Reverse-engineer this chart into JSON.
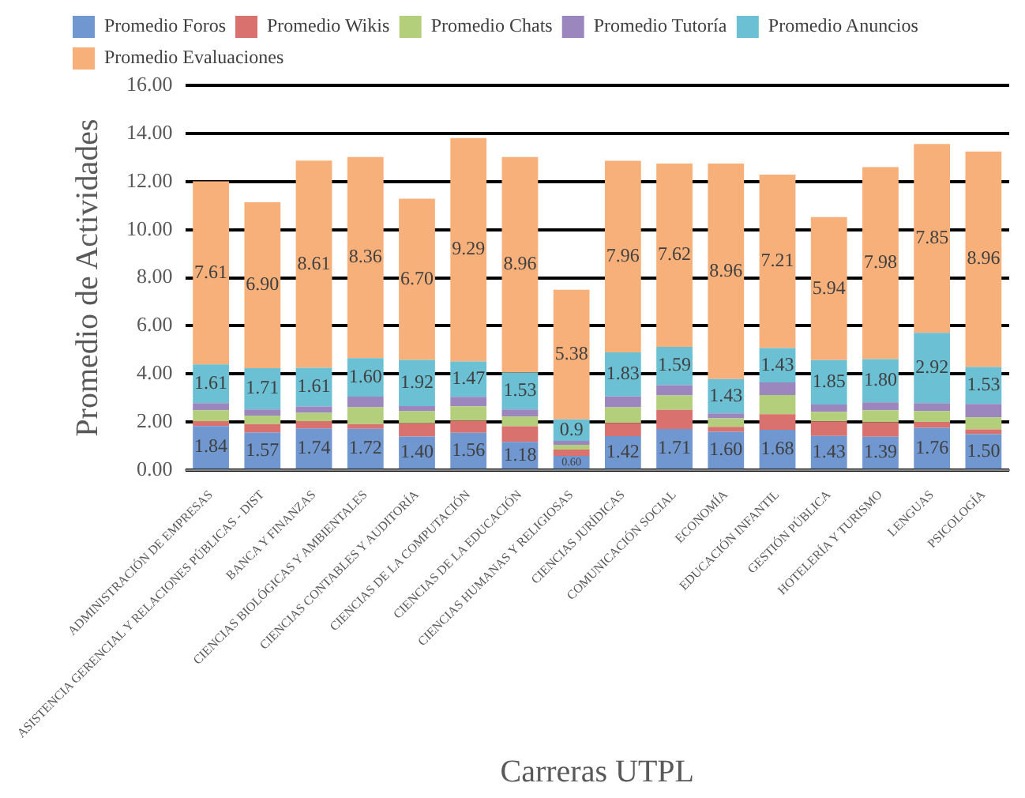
{
  "chart_data": {
    "type": "bar",
    "stacked": true,
    "xlabel": "Carreras UTPL",
    "ylabel": "Promedio de Actividades",
    "categories": [
      "ADMINISTRACIÓN DE EMPRESAS",
      "ASISTENCIA GERENCIAL Y RELACIONES PÚBLICAS - DIST",
      "BANCA Y FINANZAS",
      "CIENCIAS BIOLÓGICAS Y AMBIENTALES",
      "CIENCIAS CONTABLES Y AUDITORÍA",
      "CIENCIAS DE LA COMPUTACIÓN",
      "CIENCIAS DE LA EDUCACIÓN",
      "CIENCIAS HUMANAS Y RELIGIOSAS",
      "CIENCIAS JURÍDICAS",
      "COMUNICACIÓN SOCIAL",
      "ECONOMÍA",
      "EDUCACIÓN INFANTIL",
      "GESTIÓN PÚBLICA",
      "HOTELERÍA Y TURISMO",
      "LENGUAS",
      "PSICOLOGÍA"
    ],
    "series": [
      {
        "name": "Promedio Foros",
        "color": "#7097cf",
        "values": [
          1.84,
          1.57,
          1.74,
          1.72,
          1.4,
          1.56,
          1.18,
          0.6,
          1.42,
          1.71,
          1.6,
          1.68,
          1.43,
          1.39,
          1.76,
          1.5
        ],
        "value_labels": [
          "1.84",
          "1.57",
          "1.74",
          "1.72",
          "1.40",
          "1.56",
          "1.18",
          "0.60",
          "1.42",
          "1.71",
          "1.60",
          "1.68",
          "1.43",
          "1.39",
          "1.76",
          "1.50"
        ]
      },
      {
        "name": "Promedio Wikis",
        "color": "#d9716f",
        "values": [
          0.2,
          0.35,
          0.3,
          0.2,
          0.55,
          0.5,
          0.65,
          0.26,
          0.55,
          0.8,
          0.2,
          0.65,
          0.6,
          0.6,
          0.25,
          0.2
        ]
      },
      {
        "name": "Promedio Chats",
        "color": "#b3cf7c",
        "values": [
          0.45,
          0.35,
          0.35,
          0.7,
          0.5,
          0.6,
          0.4,
          0.2,
          0.65,
          0.6,
          0.36,
          0.8,
          0.4,
          0.5,
          0.45,
          0.5
        ]
      },
      {
        "name": "Promedio Tutoría",
        "color": "#9b87bd",
        "values": [
          0.3,
          0.26,
          0.26,
          0.44,
          0.22,
          0.39,
          0.3,
          0.16,
          0.45,
          0.43,
          0.2,
          0.52,
          0.3,
          0.33,
          0.33,
          0.56
        ]
      },
      {
        "name": "Promedio Anuncios",
        "color": "#6cc0d4",
        "values": [
          1.61,
          1.71,
          1.61,
          1.6,
          1.92,
          1.47,
          1.53,
          0.9,
          1.83,
          1.59,
          1.43,
          1.43,
          1.85,
          1.8,
          2.92,
          1.53
        ],
        "value_labels": [
          "1.61",
          "1.71",
          "1.61",
          "1.60",
          "1.92",
          "1.47",
          "1.53",
          "0.9",
          "1.83",
          "1.59",
          "1.43",
          "1.43",
          "1.85",
          "1.80",
          "2.92",
          "1.53"
        ]
      },
      {
        "name": "Promedio Evaluaciones",
        "color": "#f8b07a",
        "values": [
          7.61,
          6.9,
          8.61,
          8.36,
          6.7,
          9.29,
          8.96,
          5.38,
          7.96,
          7.62,
          8.96,
          7.21,
          5.94,
          7.98,
          7.85,
          8.96
        ],
        "value_labels": [
          "7.61",
          "6.90",
          "8.61",
          "8.36",
          "6.70",
          "9.29",
          "8.96",
          "5.38",
          "7.96",
          "7.62",
          "8.96",
          "7.21",
          "5.94",
          "7.98",
          "7.85",
          "8.96"
        ]
      }
    ],
    "ylim": [
      0,
      16
    ],
    "yticks": [
      {
        "value": 0,
        "label": "0.00"
      },
      {
        "value": 2,
        "label": "2.00"
      },
      {
        "value": 4,
        "label": "4.00"
      },
      {
        "value": 6,
        "label": "6.00"
      },
      {
        "value": 8,
        "label": "8.00"
      },
      {
        "value": 10,
        "label": "10.00"
      },
      {
        "value": 12,
        "label": "12.00"
      },
      {
        "value": 14,
        "label": "14.00"
      },
      {
        "value": 16,
        "label": "16.00"
      }
    ],
    "grid": "y",
    "legend": "top left"
  }
}
